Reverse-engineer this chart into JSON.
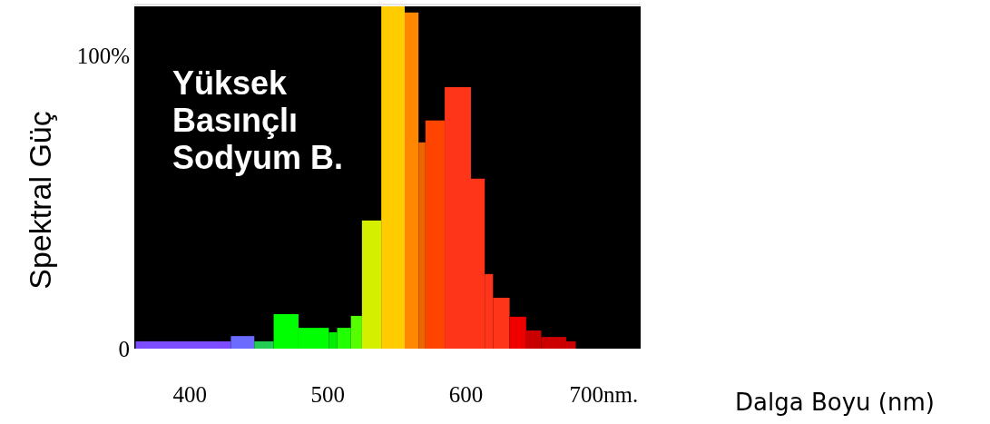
{
  "chart_data": {
    "type": "histogram",
    "title": "Yüksek Basınçlı Sodyum B.",
    "xlabel": "Dalga Boyu (nm)",
    "ylabel": "Spektral Güç",
    "bins": [
      361,
      430,
      447,
      461,
      479,
      501,
      507,
      517,
      525,
      539,
      556,
      566,
      571,
      585,
      604,
      614,
      620,
      632,
      644,
      655,
      673,
      680
    ],
    "values": [
      2.5,
      4.3,
      2.5,
      11.8,
      7.1,
      5.6,
      7.1,
      11.2,
      43.8,
      117,
      114.9,
      70.5,
      78,
      89.4,
      58.1,
      25.5,
      17.4,
      10.9,
      6.2,
      4.0,
      2.5
    ],
    "colors": [
      "#7b4dff",
      "#6b6bff",
      "#22cc55",
      "#00ff00",
      "#00ff00",
      "#00ee00",
      "#22ff00",
      "#55ff00",
      "#d4f000",
      "#ffcc00",
      "#ff8800",
      "#ee6600",
      "#ff4400",
      "#ff3519",
      "#ff3519",
      "#ff3519",
      "#ff3519",
      "#ee0000",
      "#c80000",
      "#cc0000",
      "#cc0000"
    ],
    "xlim": [
      360,
      727
    ],
    "xticks": [
      400,
      500,
      600,
      {
        "value": 700,
        "label": "700nm."
      }
    ],
    "ylim": [
      0,
      117
    ],
    "yticks": [
      0,
      {
        "value": 100,
        "label": "100%"
      }
    ]
  }
}
